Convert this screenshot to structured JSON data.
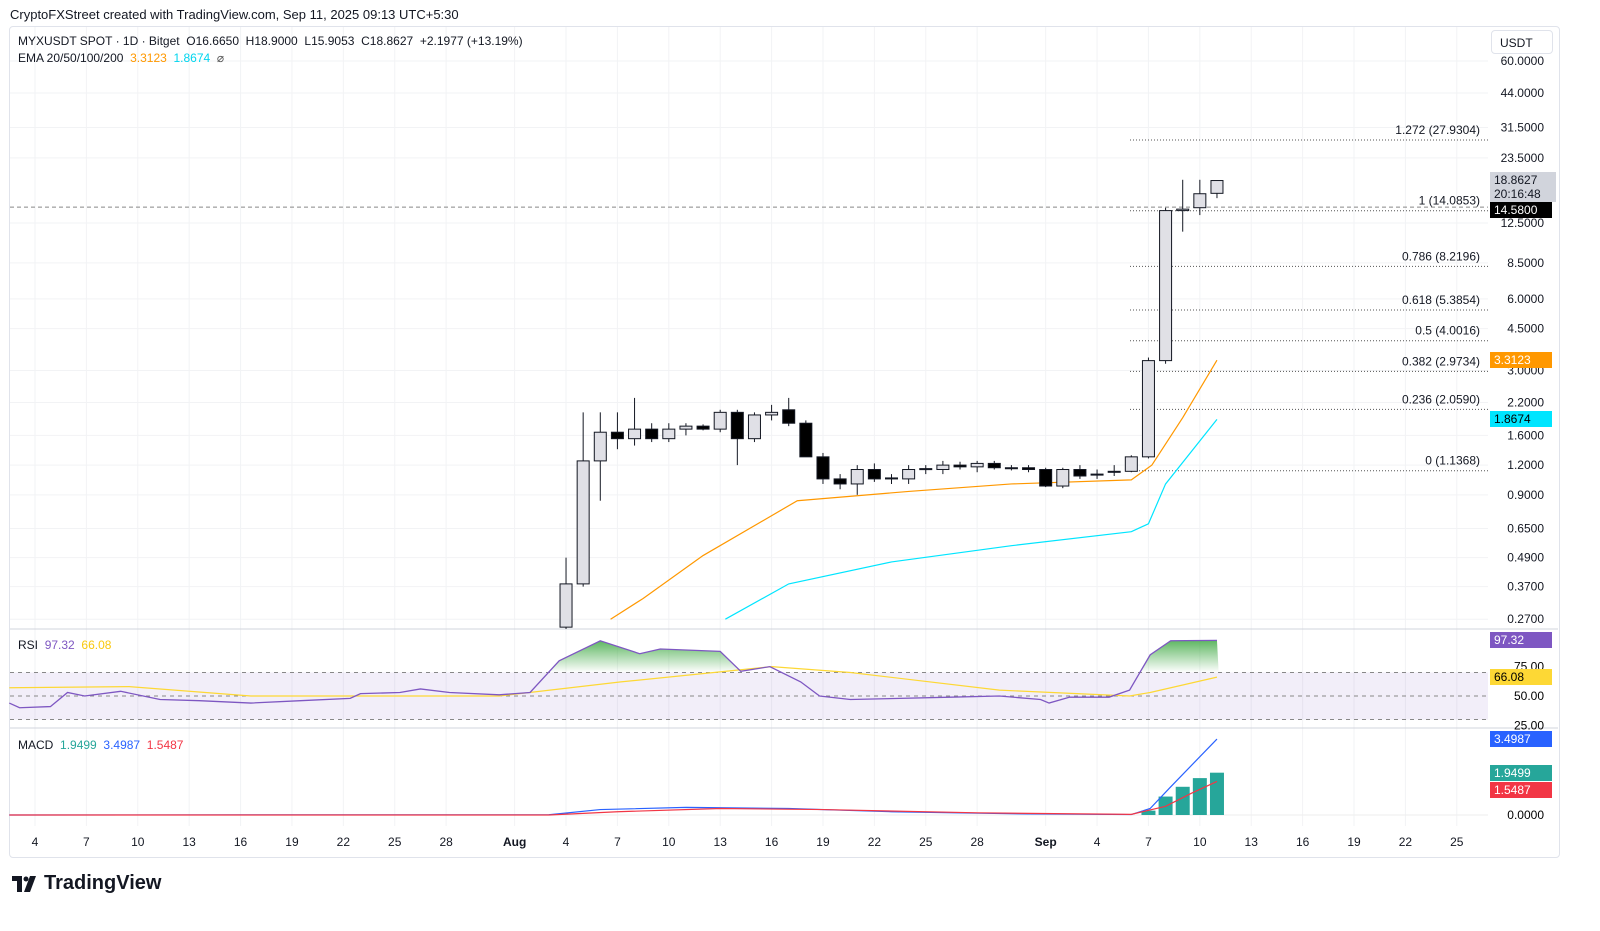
{
  "credit": "CryptoFXStreet created with TradingView.com, Sep 11, 2025 09:13 UTC+5:30",
  "legend": {
    "symbol": "MYXUSDT SPOT · 1D · Bitget",
    "open": "O16.6650",
    "high": "H18.9000",
    "low": "L15.9053",
    "close": "C18.8627",
    "change": "+2.1977 (+13.19%)",
    "ema_label": "EMA 20/50/100/200",
    "ema20": "3.3123",
    "ema50": "1.8674",
    "ema_flag": "⌀",
    "rsi_label": "RSI",
    "rsi": "97.32",
    "rsi_ma": "66.08",
    "macd_label": "MACD",
    "macd_hist": "1.9499",
    "macd_line": "3.4987",
    "macd_signal": "1.5487"
  },
  "currency": "USDT",
  "price_tag": {
    "price": "18.8627",
    "countdown": "20:16:48"
  },
  "last_tag": "14.5800",
  "colors": {
    "ema20": "#ff9800",
    "ema50": "#00e5ff",
    "rsi": "#7e57c2",
    "rsi_ma": "#fdd835",
    "macd": "#2962ff",
    "signal": "#f23645",
    "hist": "#26a69a"
  },
  "brand": "TradingView",
  "chart_data": [
    {
      "type": "candlestick",
      "scale": "log",
      "x_units": "days since Jul 4, 2025",
      "price_axis": [
        "60.0000",
        "44.0000",
        "31.5000",
        "23.5000",
        "12.5000",
        "8.5000",
        "6.0000",
        "4.5000",
        "3.0000",
        "2.2000",
        "1.6000",
        "1.2000",
        "0.9000",
        "0.6500",
        "0.4900",
        "0.3700",
        "0.2700"
      ],
      "time_axis": [
        {
          "d": 0,
          "t": "4"
        },
        {
          "d": 3,
          "t": "7"
        },
        {
          "d": 6,
          "t": "10"
        },
        {
          "d": 9,
          "t": "13"
        },
        {
          "d": 12,
          "t": "16"
        },
        {
          "d": 15,
          "t": "19"
        },
        {
          "d": 18,
          "t": "22"
        },
        {
          "d": 21,
          "t": "25"
        },
        {
          "d": 24,
          "t": "28"
        },
        {
          "d": 28,
          "t": "Aug"
        },
        {
          "d": 31,
          "t": "4"
        },
        {
          "d": 34,
          "t": "7"
        },
        {
          "d": 37,
          "t": "10"
        },
        {
          "d": 40,
          "t": "13"
        },
        {
          "d": 43,
          "t": "16"
        },
        {
          "d": 46,
          "t": "19"
        },
        {
          "d": 49,
          "t": "22"
        },
        {
          "d": 52,
          "t": "25"
        },
        {
          "d": 55,
          "t": "28"
        },
        {
          "d": 59,
          "t": "Sep"
        },
        {
          "d": 62,
          "t": "4"
        },
        {
          "d": 65,
          "t": "7"
        },
        {
          "d": 68,
          "t": "10"
        },
        {
          "d": 71,
          "t": "13"
        },
        {
          "d": 74,
          "t": "16"
        },
        {
          "d": 77,
          "t": "19"
        },
        {
          "d": 80,
          "t": "22"
        },
        {
          "d": 83,
          "t": "25"
        }
      ],
      "first_day": 31,
      "ohlc": [
        [
          0.25,
          0.49,
          0.24,
          0.38
        ],
        [
          0.38,
          2.0,
          0.37,
          1.25
        ],
        [
          1.25,
          2.0,
          0.85,
          1.65
        ],
        [
          1.65,
          2.0,
          1.4,
          1.55
        ],
        [
          1.55,
          2.3,
          1.45,
          1.7
        ],
        [
          1.7,
          1.8,
          1.5,
          1.55
        ],
        [
          1.55,
          1.8,
          1.5,
          1.7
        ],
        [
          1.7,
          1.8,
          1.6,
          1.75
        ],
        [
          1.75,
          1.78,
          1.68,
          1.7
        ],
        [
          1.7,
          2.05,
          1.65,
          2.0
        ],
        [
          2.0,
          2.05,
          1.2,
          1.55
        ],
        [
          1.55,
          2.0,
          1.5,
          1.95
        ],
        [
          1.95,
          2.15,
          1.85,
          2.0
        ],
        [
          2.05,
          2.3,
          1.75,
          1.8
        ],
        [
          1.8,
          1.85,
          1.3,
          1.3
        ],
        [
          1.3,
          1.35,
          1.0,
          1.05
        ],
        [
          1.05,
          1.1,
          0.95,
          1.0
        ],
        [
          1.0,
          1.2,
          0.9,
          1.15
        ],
        [
          1.15,
          1.22,
          1.02,
          1.05
        ],
        [
          1.05,
          1.1,
          1.0,
          1.06
        ],
        [
          1.05,
          1.2,
          1.0,
          1.15
        ],
        [
          1.15,
          1.2,
          1.1,
          1.16
        ],
        [
          1.15,
          1.25,
          1.1,
          1.2
        ],
        [
          1.2,
          1.24,
          1.15,
          1.18
        ],
        [
          1.18,
          1.25,
          1.12,
          1.22
        ],
        [
          1.22,
          1.25,
          1.15,
          1.17
        ],
        [
          1.17,
          1.2,
          1.14,
          1.17
        ],
        [
          1.17,
          1.2,
          1.12,
          1.15
        ],
        [
          1.15,
          1.17,
          0.97,
          0.98
        ],
        [
          0.98,
          1.17,
          0.96,
          1.15
        ],
        [
          1.15,
          1.2,
          1.05,
          1.08
        ],
        [
          1.1,
          1.15,
          1.05,
          1.1
        ],
        [
          1.12,
          1.2,
          1.08,
          1.13
        ],
        [
          1.13,
          1.32,
          1.12,
          1.3
        ],
        [
          1.3,
          3.4,
          1.28,
          3.3
        ],
        [
          3.3,
          14.5,
          3.2,
          14.1
        ],
        [
          14.1,
          19.0,
          11.5,
          14.3
        ],
        [
          14.5,
          19.0,
          13.5,
          16.6
        ],
        [
          16.665,
          18.9,
          15.9053,
          18.8627
        ]
      ],
      "ema20": [
        [
          33.6,
          0.27
        ],
        [
          35.5,
          0.33
        ],
        [
          39,
          0.5
        ],
        [
          44.5,
          0.85
        ],
        [
          51,
          0.93
        ],
        [
          57,
          1.0
        ],
        [
          64,
          1.04
        ],
        [
          65.2,
          1.2
        ],
        [
          67,
          1.9
        ],
        [
          69,
          3.3123
        ]
      ],
      "ema50": [
        [
          40.3,
          0.27
        ],
        [
          44,
          0.38
        ],
        [
          50,
          0.47
        ],
        [
          57,
          0.55
        ],
        [
          64,
          0.63
        ],
        [
          65,
          0.68
        ],
        [
          66,
          1.0
        ],
        [
          69,
          1.8674
        ]
      ],
      "fib": [
        {
          "level": "1.272 (27.9304)",
          "v": 27.9304
        },
        {
          "level": "1 (14.0853)",
          "v": 14.0853
        },
        {
          "level": "0.786 (8.2196)",
          "v": 8.2196
        },
        {
          "level": "0.618 (5.3854)",
          "v": 5.3854
        },
        {
          "level": "0.5 (4.0016)",
          "v": 4.0016
        },
        {
          "level": "0.382 (2.9734)",
          "v": 2.9734
        },
        {
          "level": "0.236 (2.0590)",
          "v": 2.059
        },
        {
          "level": "0 (1.1368)",
          "v": 1.1368
        }
      ]
    },
    {
      "type": "line",
      "name": "RSI",
      "ylim": [
        25,
        100
      ],
      "axis": [
        "75.00",
        "50.00",
        "25.00"
      ],
      "rsi": [
        [
          -1.5,
          44
        ],
        [
          -0.9,
          40
        ],
        [
          0.9,
          41
        ],
        [
          1.9,
          53
        ],
        [
          2.9,
          50
        ],
        [
          5,
          54
        ],
        [
          7.3,
          47
        ],
        [
          9.6,
          46
        ],
        [
          12.6,
          44
        ],
        [
          15.5,
          46
        ],
        [
          18.4,
          48
        ],
        [
          19,
          52
        ],
        [
          21.3,
          53
        ],
        [
          22.5,
          56
        ],
        [
          24.2,
          53
        ],
        [
          27.1,
          51
        ],
        [
          28.9,
          53
        ],
        [
          30.6,
          80
        ],
        [
          33,
          97
        ],
        [
          35.3,
          86
        ],
        [
          36.5,
          90
        ],
        [
          40,
          88
        ],
        [
          41.2,
          71
        ],
        [
          42.9,
          75
        ],
        [
          44.7,
          62
        ],
        [
          45.8,
          50
        ],
        [
          47.6,
          47
        ],
        [
          50.5,
          48
        ],
        [
          53.4,
          49
        ],
        [
          56.3,
          50
        ],
        [
          58.7,
          47
        ],
        [
          59.2,
          44
        ],
        [
          60.4,
          49
        ],
        [
          62.7,
          49
        ],
        [
          63.9,
          55
        ],
        [
          65.1,
          85
        ],
        [
          66.3,
          97
        ],
        [
          69,
          97.32
        ]
      ],
      "ma": [
        [
          -1.5,
          57
        ],
        [
          5.5,
          58
        ],
        [
          12.6,
          50
        ],
        [
          27.1,
          50
        ],
        [
          34.2,
          62
        ],
        [
          43,
          75
        ],
        [
          47.6,
          70
        ],
        [
          56.3,
          55
        ],
        [
          63.9,
          50
        ],
        [
          65.1,
          53
        ],
        [
          69,
          66.08
        ]
      ]
    },
    {
      "type": "bar+line",
      "name": "MACD",
      "axis": [
        "0.0000"
      ],
      "hist": [
        [
          65,
          0.2
        ],
        [
          66,
          0.85
        ],
        [
          67,
          1.3
        ],
        [
          68,
          1.7
        ],
        [
          69,
          1.9499
        ]
      ],
      "macd": [
        [
          -1.5,
          0
        ],
        [
          30,
          0.01
        ],
        [
          33,
          0.25
        ],
        [
          38,
          0.35
        ],
        [
          44,
          0.3
        ],
        [
          50,
          0.15
        ],
        [
          58,
          0.05
        ],
        [
          64,
          0.02
        ],
        [
          65.1,
          0.3
        ],
        [
          66.3,
          1.3
        ],
        [
          69,
          3.4987
        ]
      ],
      "signal": [
        [
          -1.5,
          0
        ],
        [
          30,
          0
        ],
        [
          34,
          0.15
        ],
        [
          40,
          0.3
        ],
        [
          46,
          0.25
        ],
        [
          55,
          0.1
        ],
        [
          64,
          0.03
        ],
        [
          66,
          0.4
        ],
        [
          67.5,
          1.0
        ],
        [
          69,
          1.5487
        ]
      ]
    }
  ]
}
